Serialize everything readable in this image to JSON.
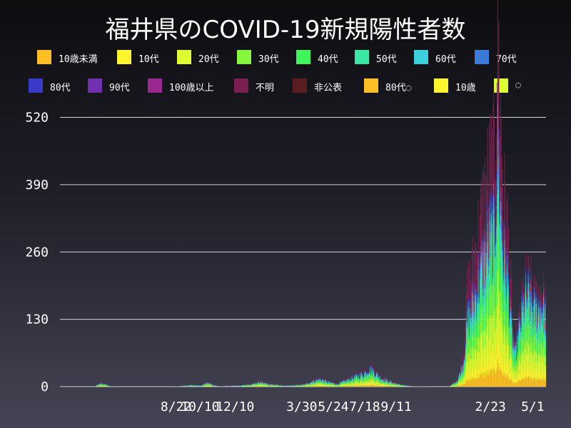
{
  "title": "福井県のCOVID-19新規陽性者数",
  "legend": [
    {
      "label": "10歳未満",
      "color": "#fbbf24"
    },
    {
      "label": "10代",
      "color": "#fef52e"
    },
    {
      "label": "20代",
      "color": "#ddfb30"
    },
    {
      "label": "30代",
      "color": "#86f73a"
    },
    {
      "label": "40代",
      "color": "#3ef55a"
    },
    {
      "label": "50代",
      "color": "#3ae8a4"
    },
    {
      "label": "60代",
      "color": "#3ccfdc"
    },
    {
      "label": "70代",
      "color": "#3a7ad8"
    },
    {
      "label": "80代",
      "color": "#3a3ac8"
    },
    {
      "label": "90代",
      "color": "#7030b0"
    },
    {
      "label": "100歳以上",
      "color": "#9a2890"
    },
    {
      "label": "不明",
      "color": "#7a2050"
    },
    {
      "label": "非公表",
      "color": "#5a1e22"
    },
    {
      "label": "80代◌",
      "color": "#fbbf24"
    },
    {
      "label": "10歳",
      "color": "#fef52e"
    },
    {
      "label": "◌",
      "color": "#ddfb30"
    }
  ],
  "chart_data": {
    "type": "bar",
    "stacked": true,
    "title": "福井県のCOVID-19新規陽性者数",
    "xlabel": "",
    "ylabel": "",
    "ylim": [
      0,
      540
    ],
    "yticks": [
      0,
      130,
      260,
      390,
      520
    ],
    "grid": true,
    "legend_position": "top",
    "x_tick_labels": [
      {
        "label": "8/22",
        "index": 230
      },
      {
        "label": "10/10",
        "index": 279
      },
      {
        "label": "12/10",
        "index": 340
      },
      {
        "label": "3/30",
        "index": 450
      },
      {
        "label": "5/24",
        "index": 505
      },
      {
        "label": "7/18",
        "index": 560
      },
      {
        "label": "9/11",
        "index": 615
      },
      {
        "label": "2/23",
        "index": 780
      },
      {
        "label": "5/1",
        "index": 847
      }
    ],
    "series_colors": [
      "#fbbf24",
      "#fef52e",
      "#ddfb30",
      "#86f73a",
      "#3ef55a",
      "#3ae8a4",
      "#3ccfdc",
      "#3a7ad8",
      "#3a3ac8",
      "#7030b0",
      "#9a2890",
      "#7a2050",
      "#5a1e22"
    ],
    "series_names": [
      "10歳未満",
      "10代",
      "20代",
      "30代",
      "40代",
      "50代",
      "60代",
      "70代",
      "80代",
      "90代",
      "100歳以上",
      "不明",
      "非公表"
    ],
    "series_shares": [
      0.08,
      0.09,
      0.16,
      0.14,
      0.13,
      0.11,
      0.08,
      0.06,
      0.03,
      0.01,
      0.0,
      0.11,
      0.0
    ],
    "num_days": 850,
    "daily_totals_keypoints": [
      [
        0,
        0
      ],
      [
        60,
        0
      ],
      [
        65,
        4
      ],
      [
        72,
        7
      ],
      [
        80,
        5
      ],
      [
        90,
        0
      ],
      [
        200,
        0
      ],
      [
        215,
        2
      ],
      [
        232,
        4
      ],
      [
        245,
        2
      ],
      [
        258,
        9
      ],
      [
        268,
        3
      ],
      [
        280,
        1
      ],
      [
        300,
        2
      ],
      [
        318,
        3
      ],
      [
        335,
        6
      ],
      [
        350,
        10
      ],
      [
        365,
        6
      ],
      [
        378,
        4
      ],
      [
        395,
        2
      ],
      [
        410,
        3
      ],
      [
        428,
        5
      ],
      [
        440,
        12
      ],
      [
        455,
        17
      ],
      [
        470,
        10
      ],
      [
        485,
        6
      ],
      [
        500,
        14
      ],
      [
        515,
        22
      ],
      [
        530,
        28
      ],
      [
        540,
        40
      ],
      [
        548,
        35
      ],
      [
        560,
        20
      ],
      [
        575,
        12
      ],
      [
        590,
        6
      ],
      [
        602,
        3
      ],
      [
        615,
        1
      ],
      [
        650,
        0
      ],
      [
        680,
        0
      ],
      [
        695,
        15
      ],
      [
        705,
        55
      ],
      [
        712,
        150
      ],
      [
        722,
        190
      ],
      [
        735,
        260
      ],
      [
        748,
        330
      ],
      [
        760,
        360
      ],
      [
        765,
        555
      ],
      [
        770,
        420
      ],
      [
        775,
        300
      ],
      [
        782,
        250
      ],
      [
        790,
        120
      ],
      [
        796,
        70
      ],
      [
        803,
        130
      ],
      [
        812,
        200
      ],
      [
        820,
        205
      ],
      [
        830,
        170
      ],
      [
        840,
        190
      ],
      [
        850,
        160
      ]
    ],
    "non_numeric_segments": [
      "◌"
    ]
  }
}
